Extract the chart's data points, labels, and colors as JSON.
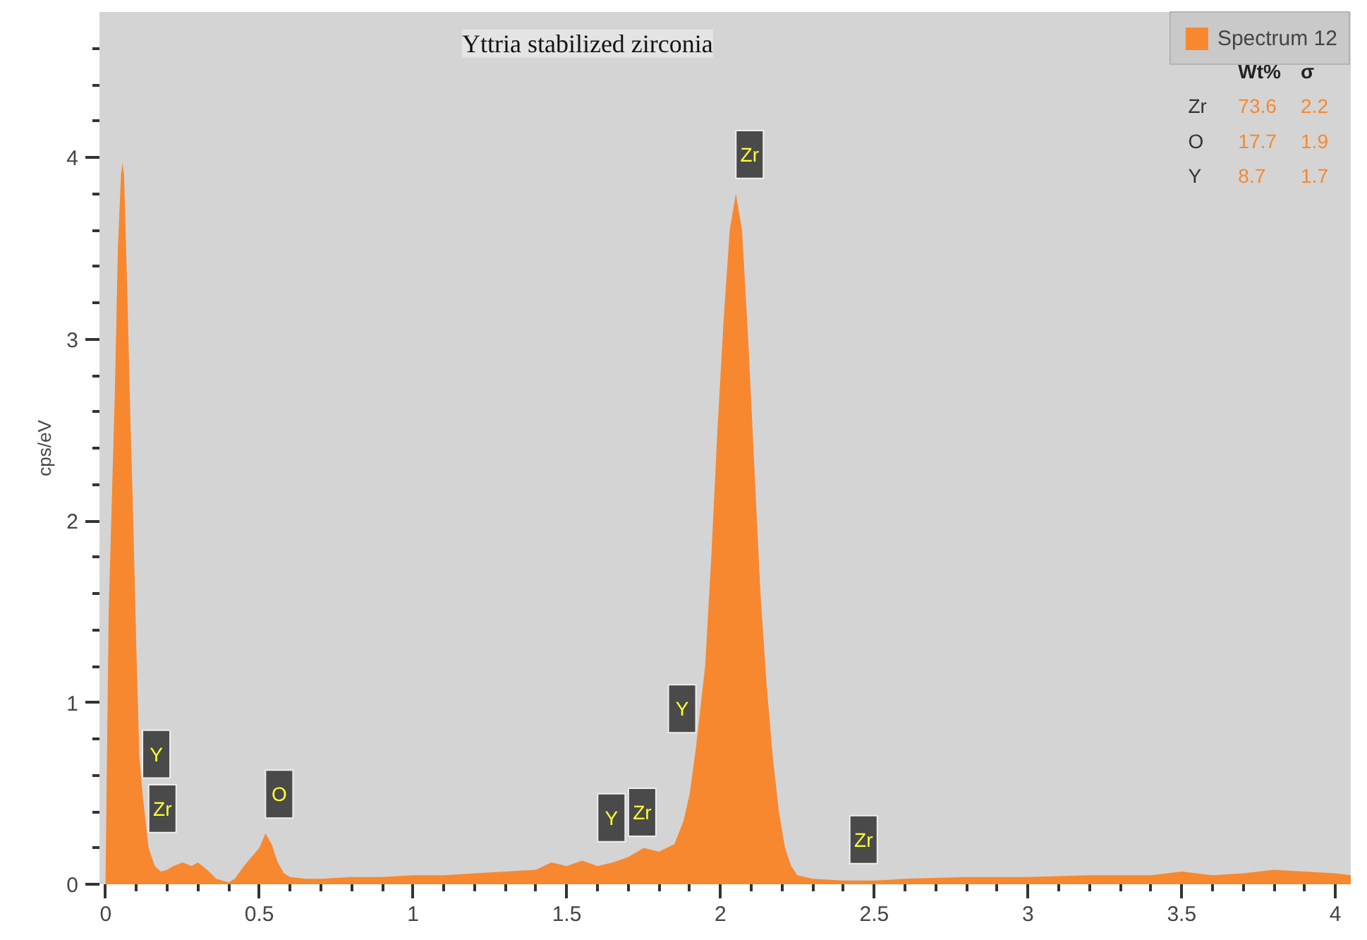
{
  "chart_data": {
    "type": "area",
    "title": "Yttria stabilized zirconia",
    "ylabel": "cps/eV",
    "x": [
      0.0,
      0.01,
      0.02,
      0.03,
      0.04,
      0.05,
      0.055,
      0.06,
      0.07,
      0.08,
      0.09,
      0.1,
      0.11,
      0.12,
      0.14,
      0.16,
      0.18,
      0.2,
      0.22,
      0.25,
      0.28,
      0.3,
      0.33,
      0.36,
      0.4,
      0.42,
      0.45,
      0.48,
      0.5,
      0.52,
      0.54,
      0.56,
      0.58,
      0.6,
      0.65,
      0.7,
      0.8,
      0.9,
      1.0,
      1.1,
      1.2,
      1.3,
      1.4,
      1.45,
      1.5,
      1.55,
      1.6,
      1.65,
      1.7,
      1.75,
      1.8,
      1.85,
      1.88,
      1.9,
      1.92,
      1.95,
      1.97,
      1.99,
      2.01,
      2.03,
      2.05,
      2.07,
      2.09,
      2.11,
      2.13,
      2.15,
      2.17,
      2.19,
      2.21,
      2.23,
      2.25,
      2.3,
      2.4,
      2.5,
      2.6,
      2.8,
      3.0,
      3.2,
      3.4,
      3.5,
      3.6,
      3.7,
      3.8,
      3.9,
      4.0,
      4.05
    ],
    "series": [
      {
        "name": "Spectrum 12",
        "color": "#f7882f",
        "values": [
          0.05,
          1.5,
          2.1,
          2.7,
          3.5,
          3.9,
          3.97,
          3.9,
          3.3,
          2.6,
          2.0,
          1.3,
          0.7,
          0.5,
          0.2,
          0.1,
          0.07,
          0.08,
          0.1,
          0.12,
          0.1,
          0.12,
          0.08,
          0.03,
          0.01,
          0.03,
          0.1,
          0.16,
          0.2,
          0.28,
          0.22,
          0.12,
          0.06,
          0.04,
          0.03,
          0.03,
          0.04,
          0.04,
          0.05,
          0.05,
          0.06,
          0.07,
          0.08,
          0.12,
          0.1,
          0.13,
          0.1,
          0.12,
          0.15,
          0.2,
          0.18,
          0.22,
          0.35,
          0.5,
          0.75,
          1.2,
          1.8,
          2.5,
          3.1,
          3.6,
          3.8,
          3.6,
          3.0,
          2.3,
          1.6,
          1.1,
          0.7,
          0.4,
          0.2,
          0.1,
          0.05,
          0.03,
          0.02,
          0.02,
          0.03,
          0.04,
          0.04,
          0.05,
          0.05,
          0.07,
          0.05,
          0.06,
          0.08,
          0.07,
          0.06,
          0.05
        ]
      }
    ],
    "xlim": [
      -0.02,
      4.05
    ],
    "ylim": [
      0,
      4.8
    ],
    "xticks": [
      0,
      {
        "value": 0.1,
        "label": null
      },
      {
        "value": 0.2,
        "label": null
      },
      {
        "value": 0.3,
        "label": null
      },
      {
        "value": 0.4,
        "label": null
      },
      0.5,
      {
        "value": 0.6,
        "label": null
      },
      {
        "value": 0.7,
        "label": null
      },
      {
        "value": 0.8,
        "label": null
      },
      {
        "value": 0.9,
        "label": null
      },
      1,
      {
        "value": 1.1,
        "label": null
      },
      {
        "value": 1.2,
        "label": null
      },
      {
        "value": 1.3,
        "label": null
      },
      {
        "value": 1.4,
        "label": null
      },
      1.5,
      {
        "value": 1.6,
        "label": null
      },
      {
        "value": 1.7,
        "label": null
      },
      {
        "value": 1.8,
        "label": null
      },
      {
        "value": 1.9,
        "label": null
      },
      2,
      {
        "value": 2.1,
        "label": null
      },
      {
        "value": 2.2,
        "label": null
      },
      {
        "value": 2.3,
        "label": null
      },
      {
        "value": 2.4,
        "label": null
      },
      2.5,
      {
        "value": 2.6,
        "label": null
      },
      {
        "value": 2.7,
        "label": null
      },
      {
        "value": 2.8,
        "label": null
      },
      {
        "value": 2.9,
        "label": null
      },
      3,
      {
        "value": 3.1,
        "label": null
      },
      {
        "value": 3.2,
        "label": null
      },
      {
        "value": 3.3,
        "label": null
      },
      {
        "value": 3.4,
        "label": null
      },
      3.5,
      {
        "value": 3.6,
        "label": null
      },
      {
        "value": 3.7,
        "label": null
      },
      {
        "value": 3.8,
        "label": null
      },
      {
        "value": 3.9,
        "label": null
      },
      4
    ],
    "yticks": [
      0,
      {
        "value": 0.2,
        "label": null
      },
      {
        "value": 0.4,
        "label": null
      },
      {
        "value": 0.6,
        "label": null
      },
      {
        "value": 0.8,
        "label": null
      },
      1,
      {
        "value": 1.2,
        "label": null
      },
      {
        "value": 1.4,
        "label": null
      },
      {
        "value": 1.6,
        "label": null
      },
      {
        "value": 1.8,
        "label": null
      },
      2,
      {
        "value": 2.2,
        "label": null
      },
      {
        "value": 2.4,
        "label": null
      },
      {
        "value": 2.6,
        "label": null
      },
      {
        "value": 2.8,
        "label": null
      },
      3,
      {
        "value": 3.2,
        "label": null
      },
      {
        "value": 3.4,
        "label": null
      },
      {
        "value": 3.6,
        "label": null
      },
      {
        "value": 3.8,
        "label": null
      },
      4,
      {
        "value": 4.2,
        "label": null
      },
      {
        "value": 4.4,
        "label": null
      },
      {
        "value": 4.6,
        "label": null
      }
    ],
    "annotations": [
      {
        "text": "Y",
        "x": 0.12,
        "y": 0.5
      },
      {
        "text": "Zr",
        "x": 0.14,
        "y": 0.2
      },
      {
        "text": "O",
        "x": 0.52,
        "y": 0.28
      },
      {
        "text": "Y",
        "x": 1.69,
        "y": 0.15
      },
      {
        "text": "Zr",
        "x": 1.79,
        "y": 0.18
      },
      {
        "text": "Y",
        "x": 1.92,
        "y": 0.75
      },
      {
        "text": "Zr",
        "x": 2.05,
        "y": 3.8
      },
      {
        "text": "Zr",
        "x": 2.51,
        "y": 0.03
      },
      "Wt%",
      "σ",
      "Zr",
      "73.6",
      "2.2",
      "O",
      "17.7",
      "1.9",
      "Y",
      "8.7",
      "1.7"
    ],
    "grid": false,
    "legend": "top right"
  }
}
